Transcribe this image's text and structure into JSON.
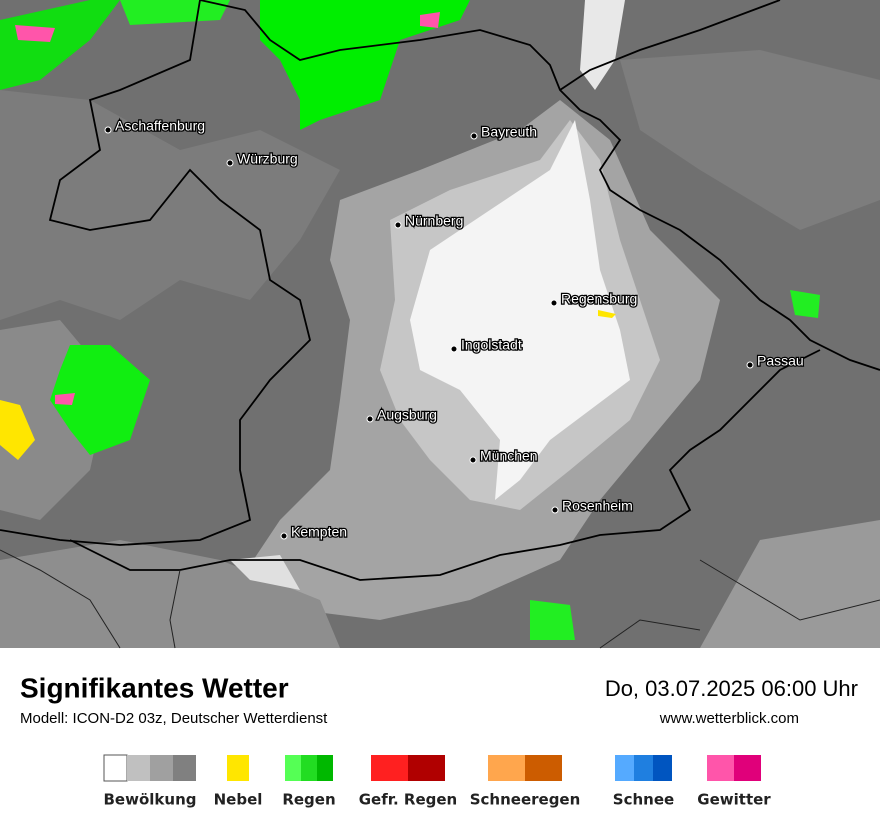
{
  "header": {
    "title": "Signifikantes Wetter",
    "subtitle": "Modell: ICON-D2 03z, Deutscher Wetterdienst",
    "date": "Do, 03.07.2025 06:00 Uhr",
    "website": "www.wetterblick.com"
  },
  "map": {
    "cities": [
      "Aschaffenburg",
      "Würzburg",
      "Bayreuth",
      "Nürnberg",
      "Regensburg",
      "Ingolstadt",
      "Passau",
      "Augsburg",
      "München",
      "Rosenheim",
      "Kempten"
    ]
  },
  "legend": [
    {
      "label": "Bewölkung",
      "colors": [
        "#ffffff",
        "#c0c0c0",
        "#a0a0a0",
        "#808080"
      ]
    },
    {
      "label": "Nebel",
      "colors": [
        "#ffe600"
      ]
    },
    {
      "label": "Regen",
      "colors": [
        "#55ff55",
        "#22dd22",
        "#00b800"
      ]
    },
    {
      "label": "Gefr. Regen",
      "colors": [
        "#ff2020",
        "#b00000"
      ]
    },
    {
      "label": "Schneeregen",
      "colors": [
        "#ffa64d",
        "#cc5c00"
      ]
    },
    {
      "label": "Schnee",
      "colors": [
        "#55aaff",
        "#1f7fe0",
        "#0055c0"
      ]
    },
    {
      "label": "Gewitter",
      "colors": [
        "#ff55aa",
        "#e0007a"
      ]
    }
  ]
}
